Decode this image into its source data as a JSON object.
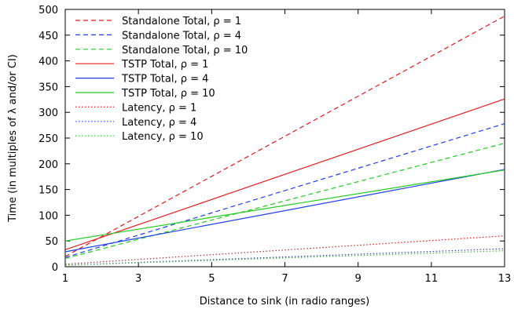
{
  "chart_data": {
    "type": "line",
    "xlabel": "Distance to sink (in radio ranges)",
    "ylabel": "Time (in multiples of λ and/or CI)",
    "xlim": [
      1,
      13
    ],
    "ylim": [
      0,
      500
    ],
    "xticks": [
      1,
      3,
      5,
      7,
      9,
      11,
      13
    ],
    "yticks": [
      0,
      50,
      100,
      150,
      200,
      250,
      300,
      350,
      400,
      450,
      500
    ],
    "grid": false,
    "legend_position": "top-left",
    "series": [
      {
        "name": "Standalone Total, ρ =  1",
        "color": "#e41a1c",
        "style": "dashed",
        "x": [
          1,
          13
        ],
        "y": [
          20,
          487
        ]
      },
      {
        "name": "Standalone Total, ρ =  4",
        "color": "#1f3ee8",
        "style": "dashed",
        "x": [
          1,
          13
        ],
        "y": [
          18,
          278
        ]
      },
      {
        "name": "Standalone Total, ρ = 10",
        "color": "#22cc22",
        "style": "dashed",
        "x": [
          1,
          13
        ],
        "y": [
          16,
          240
        ]
      },
      {
        "name": "TSTP Total, ρ =  1",
        "color": "#e41a1c",
        "style": "solid",
        "x": [
          1,
          13
        ],
        "y": [
          33,
          326
        ]
      },
      {
        "name": "TSTP Total, ρ =  4",
        "color": "#1f3ee8",
        "style": "solid",
        "x": [
          1,
          13
        ],
        "y": [
          29,
          189
        ]
      },
      {
        "name": "TSTP Total, ρ = 10",
        "color": "#22cc22",
        "style": "solid",
        "x": [
          1,
          13
        ],
        "y": [
          50,
          188
        ]
      },
      {
        "name": "Latency, ρ =  1",
        "color": "#e41a1c",
        "style": "dotted",
        "x": [
          1,
          13
        ],
        "y": [
          5,
          60
        ]
      },
      {
        "name": "Latency, ρ =  4",
        "color": "#1f3ee8",
        "style": "dotted",
        "x": [
          1,
          13
        ],
        "y": [
          3,
          35
        ]
      },
      {
        "name": "Latency, ρ = 10",
        "color": "#22cc22",
        "style": "dotted",
        "x": [
          1,
          13
        ],
        "y": [
          3,
          31
        ]
      }
    ]
  }
}
